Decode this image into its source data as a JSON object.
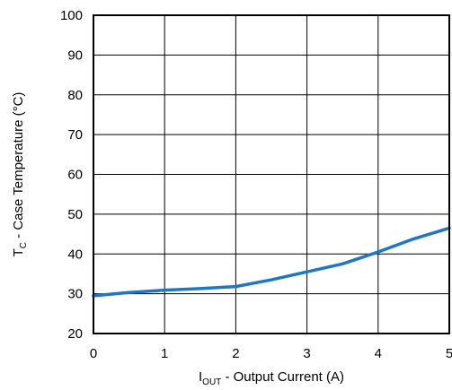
{
  "chart_data": {
    "type": "line",
    "x": [
      0,
      0.5,
      1,
      1.5,
      2,
      2.5,
      3,
      3.5,
      4,
      4.5,
      5
    ],
    "series": [
      {
        "values": [
          29.5,
          30.3,
          30.9,
          31.3,
          31.8,
          33.5,
          35.5,
          37.5,
          40.5,
          43.8,
          46.5
        ],
        "color": "#1f77c4"
      }
    ],
    "xlim": [
      0,
      5
    ],
    "ylim": [
      20,
      100
    ],
    "xticks": [
      0,
      1,
      2,
      3,
      4,
      5
    ],
    "yticks": [
      20,
      30,
      40,
      50,
      60,
      70,
      80,
      90,
      100
    ],
    "xtick_labels": [
      "0",
      "1",
      "2",
      "3",
      "4",
      "5"
    ],
    "ytick_labels": [
      "20",
      "30",
      "40",
      "50",
      "60",
      "70",
      "80",
      "90",
      "100"
    ],
    "xlabel": {
      "main": "I",
      "sub": "OUT",
      "rest": " - Output Current (A)"
    },
    "ylabel": {
      "main": "T",
      "sub": "C",
      "rest": " - Case Temperature (°C)"
    },
    "grid": true,
    "legend": "none",
    "title": ""
  }
}
